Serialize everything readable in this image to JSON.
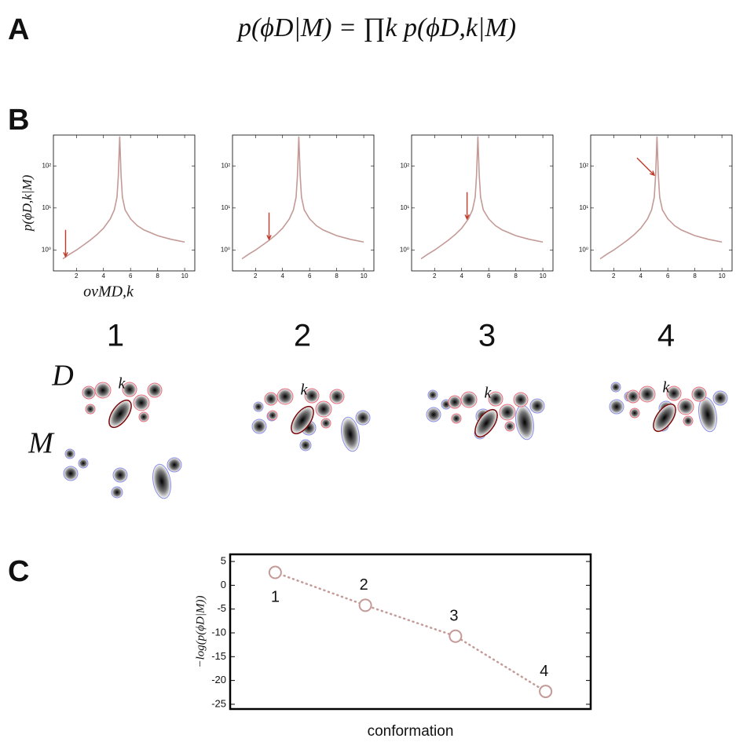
{
  "panel_labels": [
    "A",
    "B",
    "C"
  ],
  "formula": "p(ϕD|M) = ∏k p(ϕD,k|M)",
  "conformations": [
    "1",
    "2",
    "3",
    "4"
  ],
  "diagram_labels": {
    "D": "D",
    "M": "M",
    "k": "k"
  },
  "chart_data": [
    {
      "type": "line",
      "log_y": true,
      "ylabel": "p(ϕD,k|M)",
      "xlabel": "ovMD,k",
      "x": [
        1,
        1.5,
        2,
        2.5,
        3,
        3.5,
        4,
        4.5,
        4.8,
        5,
        5.1,
        5.2,
        5.3,
        5.4,
        5.6,
        6,
        6.5,
        7,
        8,
        9,
        10
      ],
      "values": [
        0.62,
        0.8,
        1.0,
        1.3,
        1.7,
        2.3,
        3.3,
        5.5,
        9,
        18,
        60,
        500,
        60,
        18,
        9,
        5.5,
        3.8,
        3.0,
        2.2,
        1.8,
        1.55
      ],
      "color": "#c49a96",
      "xlim": [
        0.3,
        10.75
      ],
      "ylim": [
        0.32,
        540
      ],
      "xticks": [
        2,
        4,
        6,
        8,
        10
      ],
      "yticks": [
        {
          "value": 1,
          "label": "10⁰"
        },
        {
          "value": 10,
          "label": "10¹"
        },
        {
          "value": 100,
          "label": "10²"
        }
      ],
      "marker": {
        "x": 1.2,
        "y": 0.7,
        "color": "#c0392b"
      }
    },
    {
      "type": "line",
      "log_y": true,
      "x": [
        1,
        1.5,
        2,
        2.5,
        3,
        3.5,
        4,
        4.5,
        4.8,
        5,
        5.1,
        5.2,
        5.3,
        5.4,
        5.6,
        6,
        6.5,
        7,
        8,
        9,
        10
      ],
      "values": [
        0.62,
        0.8,
        1.0,
        1.3,
        1.7,
        2.3,
        3.3,
        5.5,
        9,
        18,
        60,
        500,
        60,
        18,
        9,
        5.5,
        3.8,
        3.0,
        2.2,
        1.8,
        1.55
      ],
      "color": "#c49a96",
      "xlim": [
        0.3,
        10.75
      ],
      "ylim": [
        0.32,
        540
      ],
      "xticks": [
        2,
        4,
        6,
        8,
        10
      ],
      "yticks": [
        {
          "value": 1,
          "label": "10⁰"
        },
        {
          "value": 10,
          "label": "10¹"
        },
        {
          "value": 100,
          "label": "10²"
        }
      ],
      "marker": {
        "x": 3,
        "y": 1.8,
        "color": "#c0392b"
      }
    },
    {
      "type": "line",
      "log_y": true,
      "x": [
        1,
        1.5,
        2,
        2.5,
        3,
        3.5,
        4,
        4.5,
        4.8,
        5,
        5.1,
        5.2,
        5.3,
        5.4,
        5.6,
        6,
        6.5,
        7,
        8,
        9,
        10
      ],
      "values": [
        0.62,
        0.8,
        1.0,
        1.3,
        1.7,
        2.3,
        3.3,
        5.5,
        9,
        18,
        60,
        500,
        60,
        18,
        9,
        5.5,
        3.8,
        3.0,
        2.2,
        1.8,
        1.55
      ],
      "color": "#c49a96",
      "xlim": [
        0.3,
        10.75
      ],
      "ylim": [
        0.32,
        540
      ],
      "xticks": [
        2,
        4,
        6,
        8,
        10
      ],
      "yticks": [
        {
          "value": 1,
          "label": "10⁰"
        },
        {
          "value": 10,
          "label": "10¹"
        },
        {
          "value": 100,
          "label": "10²"
        }
      ],
      "marker": {
        "x": 4.4,
        "y": 5.5,
        "color": "#c0392b"
      }
    },
    {
      "type": "line",
      "log_y": true,
      "x": [
        1,
        1.5,
        2,
        2.5,
        3,
        3.5,
        4,
        4.5,
        4.8,
        5,
        5.1,
        5.2,
        5.3,
        5.4,
        5.6,
        6,
        6.5,
        7,
        8,
        9,
        10
      ],
      "values": [
        0.62,
        0.8,
        1.0,
        1.3,
        1.7,
        2.3,
        3.3,
        5.5,
        9,
        18,
        60,
        500,
        60,
        18,
        9,
        5.5,
        3.8,
        3.0,
        2.2,
        1.8,
        1.55
      ],
      "color": "#c49a96",
      "xlim": [
        0.3,
        10.75
      ],
      "ylim": [
        0.32,
        540
      ],
      "xticks": [
        2,
        4,
        6,
        8,
        10
      ],
      "yticks": [
        {
          "value": 1,
          "label": "10⁰"
        },
        {
          "value": 10,
          "label": "10¹"
        },
        {
          "value": 100,
          "label": "10²"
        }
      ],
      "marker": {
        "x": 5.0,
        "y": 60,
        "color": "#c0392b"
      }
    },
    {
      "type": "dotted-points",
      "categories": [
        "1",
        "2",
        "3",
        "4"
      ],
      "x": [
        1,
        2,
        3,
        4
      ],
      "values": [
        2.7,
        -4.2,
        -10.7,
        -22.3
      ],
      "color": "#c49a96",
      "xlim": [
        0.5,
        4.5
      ],
      "ylim": [
        -26,
        6.5
      ],
      "yticks": [
        5,
        0,
        -5,
        -10,
        -15,
        -20,
        -25
      ],
      "xlabel": "conformation",
      "ylabel": "−log(p(ϕD|M))"
    }
  ]
}
